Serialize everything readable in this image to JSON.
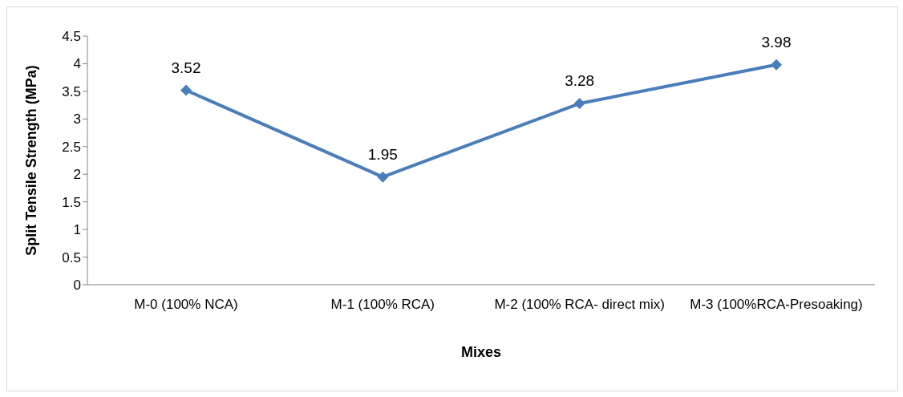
{
  "chart_data": {
    "type": "line",
    "xlabel": "Mixes",
    "ylabel": "Split Tensile Strength (MPa)",
    "categories": [
      "M-0 (100% NCA)",
      "M-1 (100% RCA)",
      "M-2 (100% RCA- direct mix)",
      "M-3 (100%RCA-Presoaking)"
    ],
    "series": [
      {
        "color": "#4a7ebb",
        "values": [
          3.52,
          1.95,
          3.28,
          3.98
        ]
      }
    ],
    "ylim": [
      0,
      4.5
    ],
    "yticks": [
      0,
      0.5,
      1,
      1.5,
      2,
      2.5,
      3,
      3.5,
      4,
      4.5
    ],
    "grid": false,
    "legend": false,
    "marker": "diamond",
    "line_style": "solid",
    "data_labels": true
  }
}
